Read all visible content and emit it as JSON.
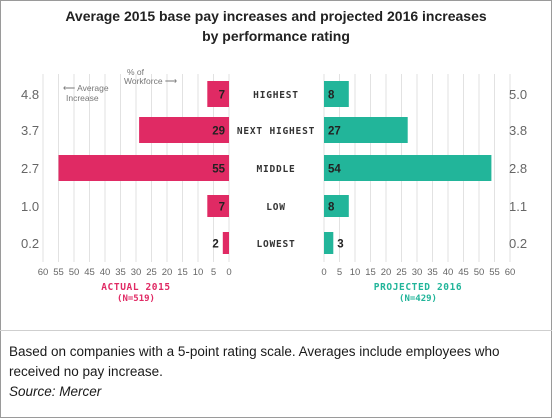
{
  "title_line1": "Average 2015 base pay increases and projected 2016 increases",
  "title_line2": "by performance rating",
  "caption": "Based on companies with a 5-point rating scale. Averages include employees who received no pay increase.",
  "source": "Source: Mercer",
  "colors": {
    "left": "#e02a64",
    "right": "#22b59a",
    "grid": "#e2e2e2",
    "text": "#666666",
    "dark": "#222222"
  },
  "chart_data": {
    "type": "bar",
    "categories": [
      "HIGHEST",
      "NEXT HIGHEST",
      "MIDDLE",
      "LOW",
      "LOWEST"
    ],
    "series": [
      {
        "name": "ACTUAL 2015",
        "sub": "(N=519)",
        "values": [
          7,
          29,
          55,
          7,
          2
        ],
        "avg_increase": [
          "4.8",
          "3.7",
          "2.7",
          "1.0",
          "0.2"
        ]
      },
      {
        "name": "PROJECTED 2016",
        "sub": "(N=429)",
        "values": [
          8,
          27,
          54,
          8,
          3
        ],
        "avg_increase": [
          "5.0",
          "3.8",
          "2.8",
          "1.1",
          "0.2"
        ]
      }
    ],
    "x_ticks": [
      "60",
      "55",
      "50",
      "45",
      "40",
      "35",
      "30",
      "25",
      "20",
      "15",
      "10",
      "5",
      "0"
    ],
    "x_ticks_right": [
      "0",
      "5",
      "10",
      "15",
      "20",
      "25",
      "30",
      "35",
      "40",
      "45",
      "50",
      "55",
      "60"
    ],
    "xlim": [
      0,
      60
    ],
    "annotation_avg": [
      "Average",
      "Increase"
    ],
    "annotation_pct": [
      "% of",
      "Workforce"
    ],
    "arrow_glyph": "⟵"
  }
}
